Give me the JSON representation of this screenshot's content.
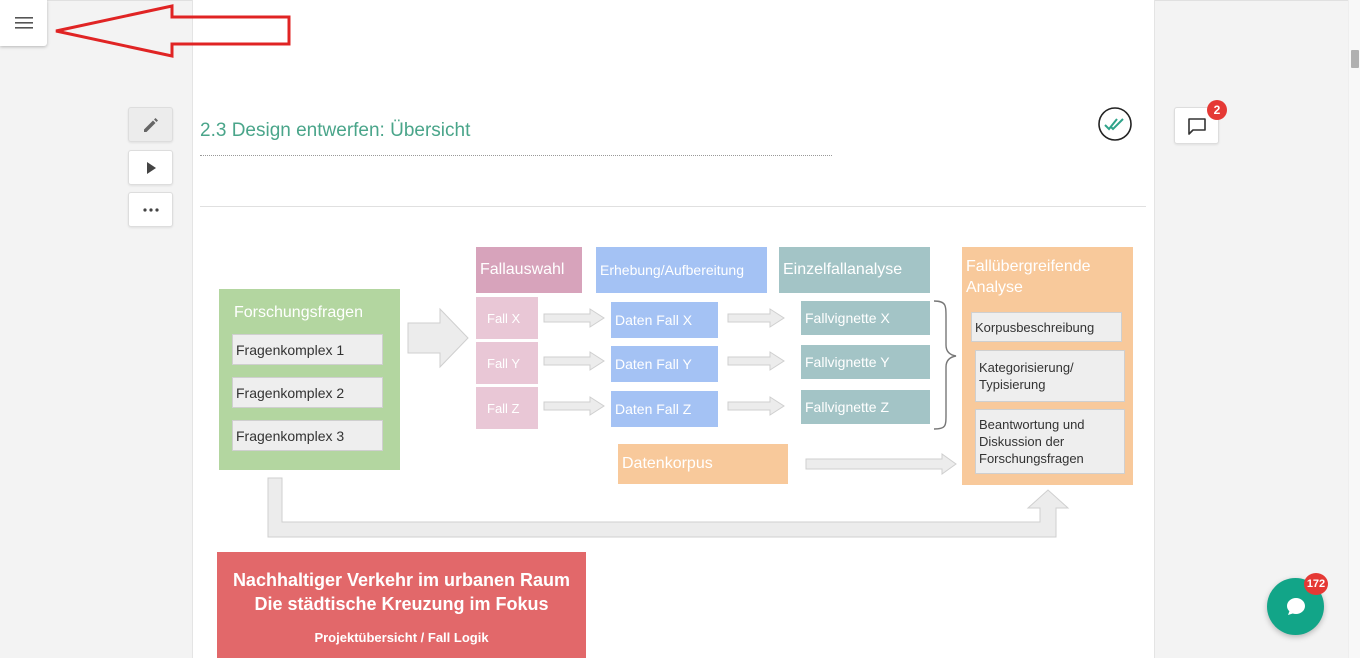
{
  "section": {
    "title": "2.3 Design entwerfen: Übersicht"
  },
  "comments": {
    "count": "2"
  },
  "chat": {
    "count": "172"
  },
  "diagram": {
    "research_questions": {
      "title": "Forschungsfragen",
      "items": [
        "Fragenkomplex 1",
        "Fragenkomplex 2",
        "Fragenkomplex 3"
      ]
    },
    "headers": {
      "case_selection": "Fallauswahl",
      "collection": "Erhebung/Aufbereitung",
      "single_case": "Einzelfallanalyse",
      "cross_case": "Fallübergreifende Analyse"
    },
    "cases": [
      "Fall X",
      "Fall Y",
      "Fall Z"
    ],
    "data": [
      "Daten Fall X",
      "Daten Fall Y",
      "Daten Fall Z"
    ],
    "vignettes": [
      "Fallvignette X",
      "Fallvignette Y",
      "Fallvignette Z"
    ],
    "corpus": "Datenkorpus",
    "cross_items": [
      "Korpusbeschreibung",
      "Kategorisierung/ Typisierung",
      "Beantwortung und Diskussion der Forschungsfragen"
    ]
  },
  "banner": {
    "line1": "Nachhaltiger Verkehr im urbanen Raum",
    "line2": "Die städtische Kreuzung im Fokus",
    "line3": "Projektübersicht / Fall Logik"
  },
  "colors": {
    "title": "#4aa58a",
    "green": "#b3d6a0",
    "pink": "#d7a3bb",
    "pink_light": "#e9c7d6",
    "blue": "#a4c2f4",
    "teal": "#a3c4c6",
    "orange": "#f8c99b",
    "red": "#e2686a",
    "fab": "#12a588"
  }
}
